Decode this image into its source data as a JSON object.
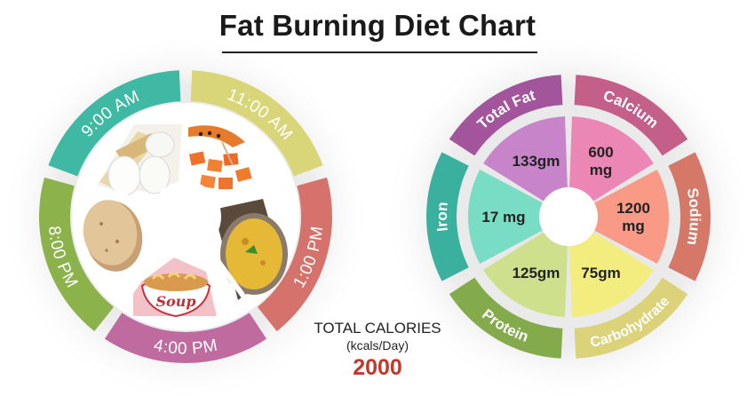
{
  "title": "Fat Burning Diet Chart",
  "meal_schedule": [
    {
      "time": "9:00 AM",
      "color": "#3fb8a4",
      "food_icon": "eggs-icon"
    },
    {
      "time": "11:00 AM",
      "color": "#d9d67a",
      "food_icon": "papaya-icon"
    },
    {
      "time": "1:00 PM",
      "color": "#d6726c",
      "food_icon": "dal-bowl-icon"
    },
    {
      "time": "4:00 PM",
      "color": "#c06b9f",
      "food_icon": "soup-bowl-icon"
    },
    {
      "time": "8:00 PM",
      "color": "#8cb24c",
      "food_icon": "roti-icon"
    }
  ],
  "nutrients": [
    {
      "name": "Total Fat",
      "value": "133gm",
      "outer_color": "#a2559a",
      "inner_color": "#c784c9"
    },
    {
      "name": "Calcium",
      "value": "600\nmg",
      "outer_color": "#c35f89",
      "inner_color": "#ec87b5"
    },
    {
      "name": "Sodium",
      "value": "1200\nmg",
      "outer_color": "#d57868",
      "inner_color": "#f99a87"
    },
    {
      "name": "Carbohydrate",
      "value": "75gm",
      "outer_color": "#dbd279",
      "inner_color": "#f3ed7f"
    },
    {
      "name": "Protein",
      "value": "125gm",
      "outer_color": "#83ab4c",
      "inner_color": "#cfe08d"
    },
    {
      "name": "Iron",
      "value": "17 mg",
      "outer_color": "#3ab09f",
      "inner_color": "#79ddc6"
    }
  ],
  "calories": {
    "label": "TOTAL CALORIES",
    "unit": "(kcals/Day)",
    "value": "2000",
    "value_color": "#c0392b"
  }
}
